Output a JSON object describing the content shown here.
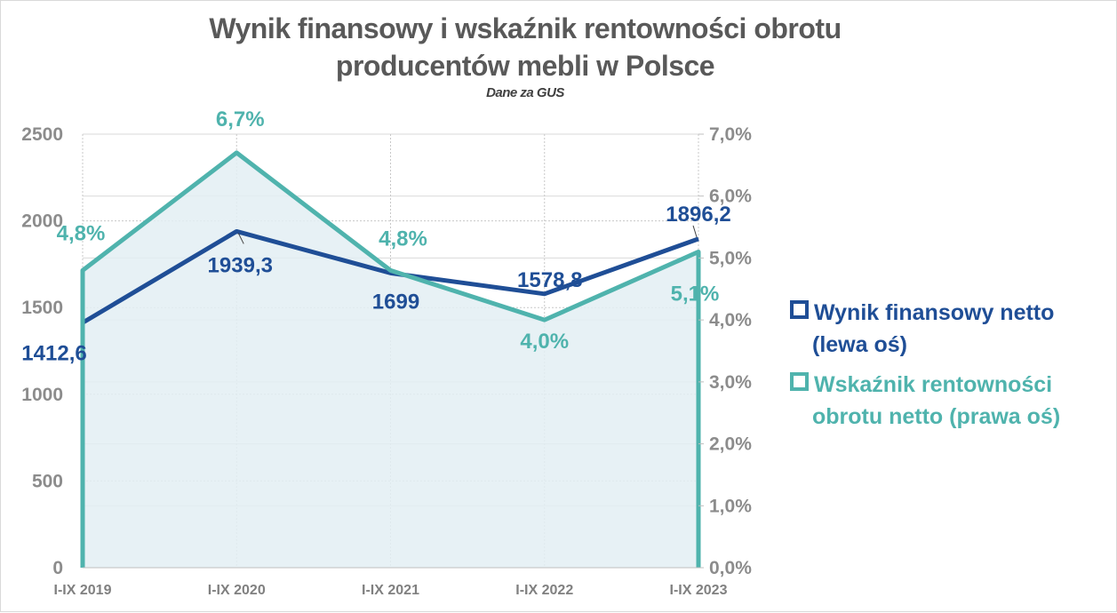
{
  "chart_data": {
    "type": "line",
    "title": "Wynik finansowy i wskaźnik rentowności obrotu producentów mebli w Polsce",
    "subtitle": "Dane za GUS",
    "categories": [
      "I-IX 2019",
      "I-IX 2020",
      "I-IX 2021",
      "I-IX 2022",
      "I-IX 2023"
    ],
    "y_left": {
      "range": [
        0,
        2500
      ],
      "ticks": [
        "0",
        "500",
        "1000",
        "1500",
        "2000",
        "2500"
      ]
    },
    "y_right": {
      "range": [
        0,
        7
      ],
      "ticks": [
        "0,0%",
        "1,0%",
        "2,0%",
        "3,0%",
        "4,0%",
        "5,0%",
        "6,0%",
        "7,0%"
      ]
    },
    "series": [
      {
        "name": "Wynik finansowy netto (lewa oś)",
        "axis": "left",
        "color": "#1f4e96",
        "values": [
          1412.6,
          1939.3,
          1699,
          1578.8,
          1896.2
        ],
        "labels": [
          "1412,6",
          "1939,3",
          "1699",
          "1578,8",
          "1896,2"
        ]
      },
      {
        "name": "Wskaźnik rentowności obrotu netto (prawa oś)",
        "axis": "right",
        "color": "#4fb3ad",
        "fill": "#e3eff3",
        "values": [
          4.8,
          6.7,
          4.8,
          4.0,
          5.1
        ],
        "labels": [
          "4,8%",
          "6,7%",
          "4,8%",
          "4,0%",
          "5,1%"
        ]
      }
    ],
    "grid": true,
    "legend": "right"
  },
  "title_line1": "Wynik finansowy i wskaźnik rentowności obrotu",
  "title_line2": "producentów mebli w Polsce",
  "legend": {
    "item1_line1": "Wynik finansowy netto",
    "item1_line2": "(lewa oś)",
    "item2_line1": "Wskaźnik rentowności",
    "item2_line2": "obrotu netto (prawa oś)"
  }
}
